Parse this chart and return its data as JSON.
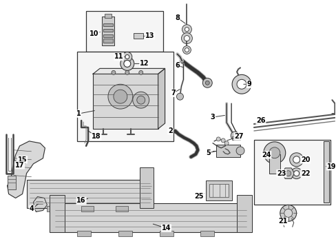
{
  "background_color": "#ffffff",
  "line_color": "#222222",
  "text_color": "#000000",
  "fig_width": 4.89,
  "fig_height": 3.6,
  "dpi": 100,
  "label_fontsize": 7.5,
  "label_fontsize_small": 6.5
}
